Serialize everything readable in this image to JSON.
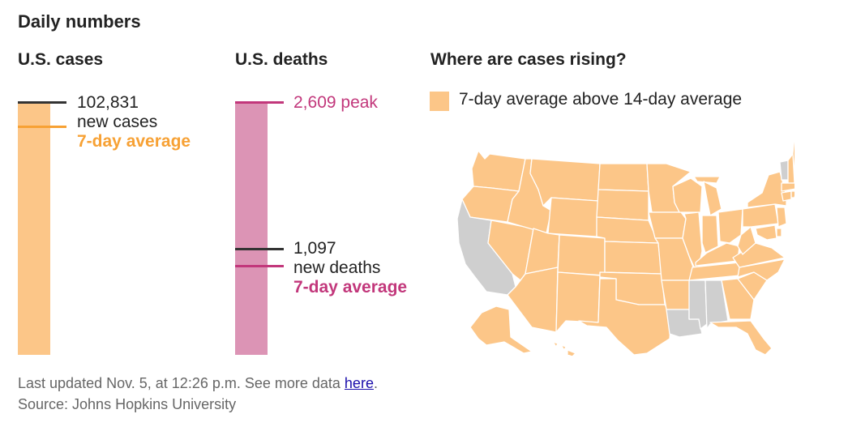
{
  "header": {
    "title": "Daily numbers"
  },
  "cases": {
    "title": "U.S. cases",
    "latest_value": "102,831",
    "latest_label": "new cases",
    "avg_label": "7-day average"
  },
  "deaths": {
    "title": "U.S. deaths",
    "peak_value": "2,609 peak",
    "latest_value": "1,097",
    "latest_label": "new deaths",
    "avg_label": "7-day average"
  },
  "map": {
    "title": "Where are cases rising?",
    "legend_label": "7-day average above 14-day average",
    "states_rising": [
      "WA",
      "OR",
      "ID",
      "MT",
      "WY",
      "ND",
      "SD",
      "NE",
      "KS",
      "OK",
      "TX",
      "NM",
      "AZ",
      "UT",
      "NV",
      "CO",
      "MN",
      "IA",
      "MO",
      "AR",
      "WI",
      "IL",
      "MI",
      "IN",
      "OH",
      "KY",
      "TN",
      "WV",
      "PA",
      "NY",
      "VA",
      "NC",
      "SC",
      "GA",
      "FL",
      "MD",
      "DE",
      "NJ",
      "CT",
      "RI",
      "MA",
      "NH",
      "ME",
      "AK",
      "HI"
    ],
    "states_not_rising": [
      "CA",
      "LA",
      "MS",
      "AL",
      "VT"
    ]
  },
  "footer": {
    "updated_text": "Last updated Nov. 5, at 12:26 p.m. See more data ",
    "link_text": "here",
    "period": ".",
    "source": "Source: Johns Hopkins University"
  },
  "colors": {
    "cases_bar": "#fcc688",
    "cases_accent": "#f7a134",
    "deaths_bar": "#dc94b5",
    "deaths_accent": "#c2377b",
    "latest_tick": "#333333",
    "rising": "#fcc688",
    "not_rising": "#cfcfcf"
  },
  "chart_data": [
    {
      "type": "bar",
      "title": "U.S. cases",
      "series": [
        {
          "name": "new cases",
          "values": [
            102831
          ]
        },
        {
          "name": "7-day average",
          "values": [
            93000
          ]
        }
      ]
    },
    {
      "type": "bar",
      "title": "U.S. deaths",
      "series": [
        {
          "name": "peak",
          "values": [
            2609
          ]
        },
        {
          "name": "new deaths",
          "values": [
            1097
          ]
        },
        {
          "name": "7-day average",
          "values": [
            920
          ]
        }
      ]
    }
  ]
}
